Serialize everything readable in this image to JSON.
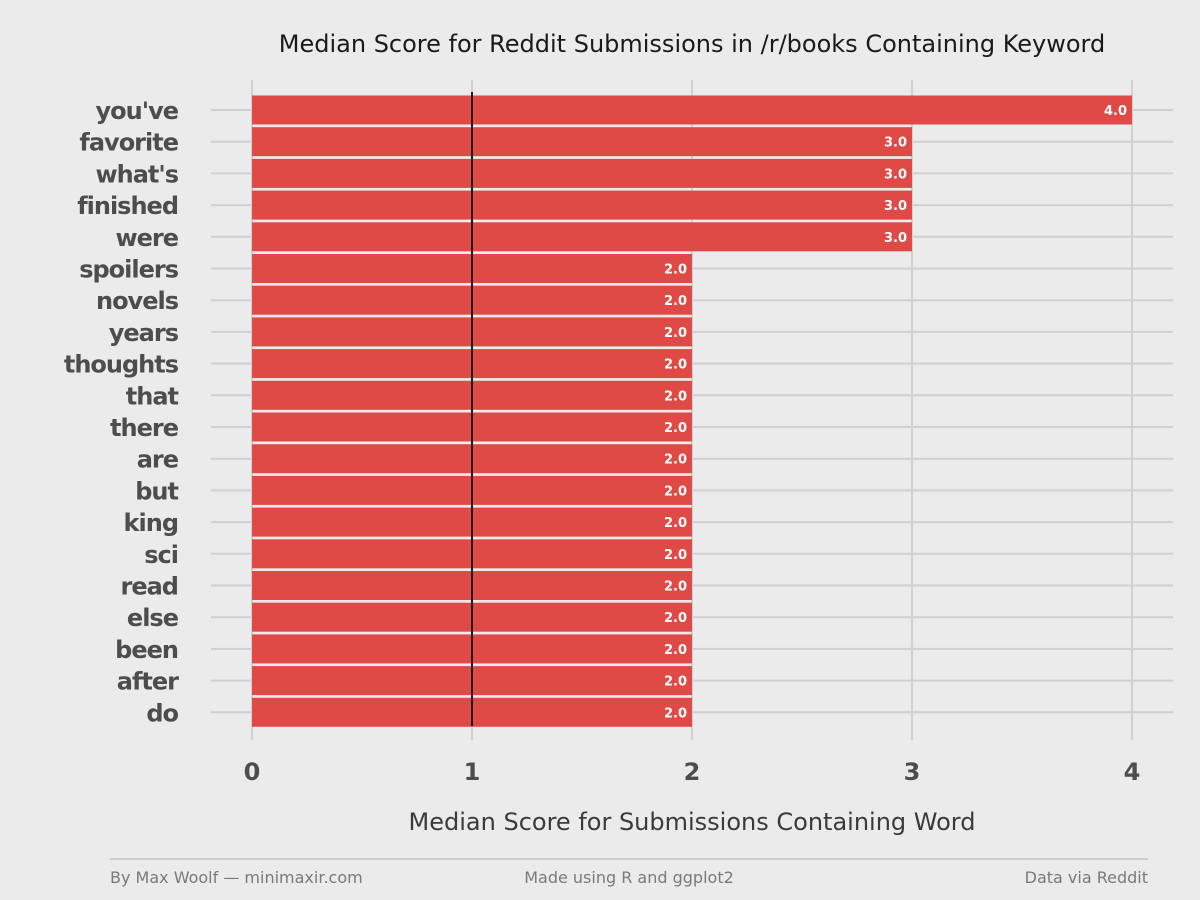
{
  "chart_data": {
    "type": "bar",
    "orientation": "horizontal",
    "title": "Median Score for Reddit Submissions in /r/books Containing Keyword",
    "xlabel": "Median Score for Submissions Containing Word",
    "ylabel": "",
    "xlim": [
      0,
      4
    ],
    "x_ticks": [
      "0",
      "1",
      "2",
      "3",
      "4"
    ],
    "reference_line": 1,
    "bar_color": "#E04A46",
    "grid": true,
    "categories": [
      "you've",
      "favorite",
      "what's",
      "finished",
      "were",
      "spoilers",
      "novels",
      "years",
      "thoughts",
      "that",
      "there",
      "are",
      "but",
      "king",
      "sci",
      "read",
      "else",
      "been",
      "after",
      "do"
    ],
    "values": [
      4,
      3,
      3,
      3,
      3,
      2,
      2,
      2,
      2,
      2,
      2,
      2,
      2,
      2,
      2,
      2,
      2,
      2,
      2,
      2
    ],
    "value_labels": [
      "4.0",
      "3.0",
      "3.0",
      "3.0",
      "3.0",
      "2.0",
      "2.0",
      "2.0",
      "2.0",
      "2.0",
      "2.0",
      "2.0",
      "2.0",
      "2.0",
      "2.0",
      "2.0",
      "2.0",
      "2.0",
      "2.0",
      "2.0"
    ]
  },
  "footer": {
    "left": "By Max Woolf — minimaxir.com",
    "center": "Made using R and ggplot2",
    "right": "Data via Reddit"
  }
}
